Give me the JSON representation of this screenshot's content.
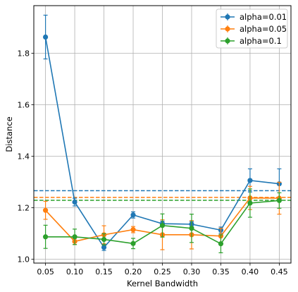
{
  "chart_data": {
    "type": "line",
    "title": "",
    "xlabel": "Kernel Bandwidth",
    "ylabel": "Distance",
    "x": [
      0.05,
      0.1,
      0.15,
      0.2,
      0.25,
      0.3,
      0.35,
      0.4,
      0.45
    ],
    "x_tick_labels": [
      "0.05",
      "0.10",
      "0.15",
      "0.20",
      "0.25",
      "0.30",
      "0.35",
      "0.40",
      "0.45"
    ],
    "y_ticks": [
      1.0,
      1.2,
      1.4,
      1.6,
      1.8
    ],
    "y_tick_labels": [
      "1.0",
      "1.2",
      "1.4",
      "1.6",
      "1.8"
    ],
    "xlim": [
      0.03,
      0.47
    ],
    "ylim": [
      0.985,
      1.985
    ],
    "grid": true,
    "legend_position": "top-right",
    "series": [
      {
        "name": "alpha=0.01",
        "color": "#1f77b4",
        "values": [
          1.863,
          1.222,
          1.046,
          1.172,
          1.138,
          1.136,
          1.113,
          1.306,
          1.293
        ],
        "errors": [
          0.085,
          0.015,
          0.012,
          0.012,
          0.01,
          0.01,
          0.012,
          0.045,
          0.058
        ],
        "baseline": 1.266
      },
      {
        "name": "alpha=0.05",
        "color": "#ff7f0e",
        "values": [
          1.19,
          1.069,
          1.095,
          1.115,
          1.095,
          1.095,
          1.09,
          1.238,
          1.237
        ],
        "errors": [
          0.035,
          0.012,
          0.035,
          0.012,
          0.058,
          0.055,
          0.03,
          0.045,
          0.062
        ],
        "baseline": 1.24
      },
      {
        "name": "alpha=0.1",
        "color": "#2ca02c",
        "values": [
          1.087,
          1.087,
          1.077,
          1.061,
          1.131,
          1.12,
          1.06,
          1.218,
          1.228
        ],
        "errors": [
          0.045,
          0.03,
          0.022,
          0.02,
          0.045,
          0.055,
          0.035,
          0.055,
          0.03
        ],
        "baseline": 1.229
      }
    ]
  }
}
